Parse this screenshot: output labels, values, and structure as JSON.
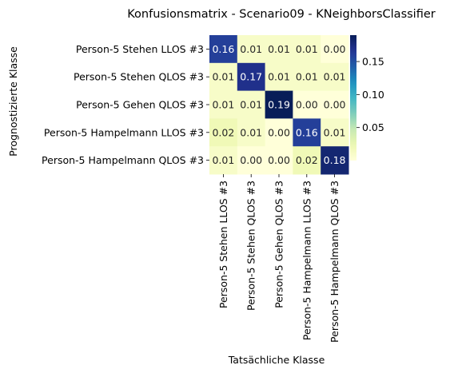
{
  "chart_data": {
    "type": "heatmap",
    "title": "Konfusionsmatrix - Scenario09 - KNeighborsClassifier",
    "xlabel": "Tatsächliche Klasse",
    "ylabel": "Prognostizierte Klasse",
    "x_categories": [
      "Person-5 Stehen LLOS #3",
      "Person-5 Stehen QLOS #3",
      "Person-5 Gehen QLOS #3",
      "Person-5 Hampelmann LLOS #3",
      "Person-5 Hampelmann QLOS #3"
    ],
    "y_categories": [
      "Person-5 Stehen LLOS #3",
      "Person-5 Stehen QLOS #3",
      "Person-5 Gehen QLOS #3",
      "Person-5 Hampelmann LLOS #3",
      "Person-5 Hampelmann QLOS #3"
    ],
    "values": [
      [
        0.16,
        0.01,
        0.01,
        0.01,
        0.0
      ],
      [
        0.01,
        0.17,
        0.01,
        0.01,
        0.01
      ],
      [
        0.01,
        0.01,
        0.19,
        0.0,
        0.0
      ],
      [
        0.02,
        0.01,
        0.0,
        0.16,
        0.01
      ],
      [
        0.01,
        0.0,
        0.0,
        0.02,
        0.18
      ]
    ],
    "value_labels": [
      [
        "0.16",
        "0.01",
        "0.01",
        "0.01",
        "0.00"
      ],
      [
        "0.01",
        "0.17",
        "0.01",
        "0.01",
        "0.01"
      ],
      [
        "0.01",
        "0.01",
        "0.19",
        "0.00",
        "0.00"
      ],
      [
        "0.02",
        "0.01",
        "0.00",
        "0.16",
        "0.01"
      ],
      [
        "0.01",
        "0.00",
        "0.00",
        "0.02",
        "0.18"
      ]
    ],
    "colormap": "YlGnBu",
    "colorbar": {
      "range": [
        0.0,
        0.19
      ],
      "ticks": [
        0.05,
        0.1,
        0.15
      ],
      "tick_labels": [
        "0.05",
        "0.10",
        "0.15"
      ]
    }
  }
}
